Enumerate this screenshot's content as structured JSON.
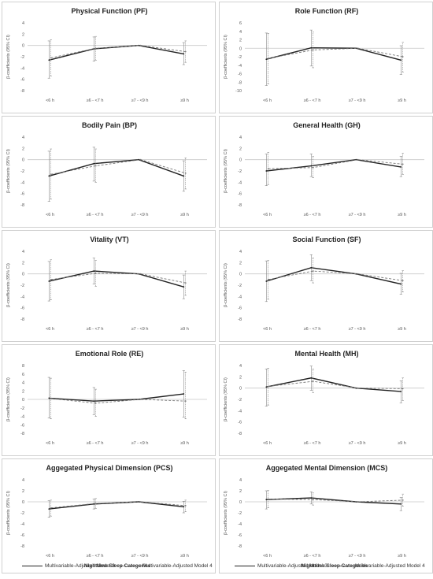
{
  "legend": {
    "model3": "Multivariable-Adjusted Model 3",
    "model4": "Multivariable-Adjusted Model 4"
  },
  "colors": {
    "model3": "#222222",
    "model4": "#777777",
    "gridline": "#c8c8c8",
    "errorbar": "#888888"
  },
  "chart_data": [
    {
      "type": "line",
      "title": "Physical Function (PF)",
      "ylabel": "β-coefficients (95% CI)",
      "xlabel": "",
      "categories": [
        "<6 h",
        "≥6 - <7 h",
        "≥7 - <9 h",
        "≥9 h"
      ],
      "ylim": [
        -8,
        4
      ],
      "ystep": 2,
      "series": [
        {
          "name": "Multivariable-Adjusted Model 3",
          "values": [
            -2.6,
            -0.6,
            0,
            -1.5
          ],
          "lower": [
            -5.8,
            -2.8,
            0,
            -3.4
          ],
          "upper": [
            0.8,
            1.5,
            0,
            0.5
          ]
        },
        {
          "name": "Multivariable-Adjusted Model 4",
          "values": [
            -2.2,
            -0.5,
            0,
            -1.1
          ],
          "lower": [
            -5.4,
            -2.6,
            0,
            -3.0
          ],
          "upper": [
            1.0,
            1.6,
            0,
            0.8
          ]
        }
      ]
    },
    {
      "type": "line",
      "title": "Role Function (RF)",
      "ylabel": "β-coefficients (95% CI)",
      "xlabel": "",
      "categories": [
        "<6 h",
        "≥6 - <7 h",
        "≥7 - <9 h",
        "≥9 h"
      ],
      "ylim": [
        -10,
        6
      ],
      "ystep": 2,
      "series": [
        {
          "name": "Multivariable-Adjusted Model 3",
          "values": [
            -2.6,
            0.1,
            0,
            -2.8
          ],
          "lower": [
            -8.8,
            -4.2,
            0,
            -6.2
          ],
          "upper": [
            3.6,
            4.3,
            0,
            0.6
          ]
        },
        {
          "name": "Multivariable-Adjusted Model 4",
          "values": [
            -2.4,
            -0.4,
            0,
            -2.0
          ],
          "lower": [
            -8.4,
            -4.6,
            0,
            -5.6
          ],
          "upper": [
            3.5,
            3.8,
            0,
            1.4
          ]
        }
      ]
    },
    {
      "type": "line",
      "title": "Bodily Pain (BP)",
      "ylabel": "β-coefficients (95% CI)",
      "xlabel": "",
      "categories": [
        "<6 h",
        "≥6 - <7 h",
        "≥7 - <9 h",
        "≥9 h"
      ],
      "ylim": [
        -8,
        4
      ],
      "ystep": 2,
      "series": [
        {
          "name": "Multivariable-Adjusted Model 3",
          "values": [
            -2.9,
            -0.7,
            0,
            -2.9
          ],
          "lower": [
            -7.4,
            -3.8,
            0,
            -5.6
          ],
          "upper": [
            1.5,
            2.2,
            0,
            -0.2
          ]
        },
        {
          "name": "Multivariable-Adjusted Model 4",
          "values": [
            -2.6,
            -1.1,
            0,
            -2.4
          ],
          "lower": [
            -7.0,
            -4.0,
            0,
            -5.2
          ],
          "upper": [
            1.9,
            1.9,
            0,
            0.3
          ]
        }
      ]
    },
    {
      "type": "line",
      "title": "General Health (GH)",
      "ylabel": "β-coefficients (95% CI)",
      "xlabel": "",
      "categories": [
        "<6 h",
        "≥6 - <7 h",
        "≥7 - <9 h",
        "≥9 h"
      ],
      "ylim": [
        -8,
        4
      ],
      "ystep": 2,
      "series": [
        {
          "name": "Multivariable-Adjusted Model 3",
          "values": [
            -2.0,
            -1.1,
            0,
            -1.3
          ],
          "lower": [
            -4.6,
            -3.0,
            0,
            -3.0
          ],
          "upper": [
            1.0,
            1.0,
            0,
            0.6
          ]
        },
        {
          "name": "Multivariable-Adjusted Model 4",
          "values": [
            -1.6,
            -1.4,
            0,
            -0.8
          ],
          "lower": [
            -4.4,
            -3.2,
            0,
            -2.6
          ],
          "upper": [
            1.3,
            0.6,
            0,
            1.1
          ]
        }
      ]
    },
    {
      "type": "line",
      "title": "Vitality (VT)",
      "ylabel": "β-coefficients (95% CI)",
      "xlabel": "",
      "categories": [
        "<6 h",
        "≥6 - <7 h",
        "≥7 - <9 h",
        "≥9 h"
      ],
      "ylim": [
        -8,
        4
      ],
      "ystep": 2,
      "series": [
        {
          "name": "Multivariable-Adjusted Model 3",
          "values": [
            -1.3,
            0.5,
            0,
            -2.3
          ],
          "lower": [
            -4.8,
            -1.8,
            0,
            -4.4
          ],
          "upper": [
            2.2,
            2.8,
            0,
            -0.2
          ]
        },
        {
          "name": "Multivariable-Adjusted Model 4",
          "values": [
            -1.0,
            0.1,
            0,
            -1.6
          ],
          "lower": [
            -4.6,
            -2.2,
            0,
            -3.8
          ],
          "upper": [
            2.5,
            2.4,
            0,
            0.5
          ]
        }
      ]
    },
    {
      "type": "line",
      "title": "Social Function (SF)",
      "ylabel": "β-coefficients (95% CI)",
      "xlabel": "",
      "categories": [
        "<6 h",
        "≥6 - <7 h",
        "≥7 - <9 h",
        "≥9 h"
      ],
      "ylim": [
        -8,
        4
      ],
      "ystep": 2,
      "series": [
        {
          "name": "Multivariable-Adjusted Model 3",
          "values": [
            -1.3,
            1.1,
            0,
            -1.8
          ],
          "lower": [
            -4.9,
            -1.2,
            0,
            -3.6
          ],
          "upper": [
            2.3,
            3.4,
            0,
            0.1
          ]
        },
        {
          "name": "Multivariable-Adjusted Model 4",
          "values": [
            -1.0,
            0.5,
            0,
            -1.2
          ],
          "lower": [
            -4.5,
            -1.6,
            0,
            -3.2
          ],
          "upper": [
            2.4,
            2.8,
            0,
            0.6
          ]
        }
      ]
    },
    {
      "type": "line",
      "title": "Emotional Role (RE)",
      "ylabel": "β-coefficients (95% CI)",
      "xlabel": "",
      "categories": [
        "<6 h",
        "≥6 - <7 h",
        "≥7 - <9 h",
        "≥9 h"
      ],
      "ylim": [
        -8,
        8
      ],
      "ystep": 2,
      "series": [
        {
          "name": "Multivariable-Adjusted Model 3",
          "values": [
            0.3,
            -0.4,
            0,
            1.3
          ],
          "lower": [
            -4.4,
            -3.6,
            0,
            -4.2
          ],
          "upper": [
            5.2,
            2.8,
            0,
            6.8
          ]
        },
        {
          "name": "Multivariable-Adjusted Model 4",
          "values": [
            0.2,
            -0.9,
            0,
            -0.4
          ],
          "lower": [
            -4.6,
            -4.0,
            0,
            -4.6
          ],
          "upper": [
            5.0,
            2.4,
            0,
            6.4
          ]
        }
      ]
    },
    {
      "type": "line",
      "title": "Mental Health (MH)",
      "ylabel": "β-coefficients (95% CI)",
      "xlabel": "",
      "categories": [
        "<6 h",
        "≥6 - <7 h",
        "≥7 - <9 h",
        "≥9 h"
      ],
      "ylim": [
        -8,
        4
      ],
      "ystep": 2,
      "series": [
        {
          "name": "Multivariable-Adjusted Model 3",
          "values": [
            0.2,
            1.8,
            0,
            -0.6
          ],
          "lower": [
            -3.2,
            -0.4,
            0,
            -2.6
          ],
          "upper": [
            3.4,
            3.9,
            0,
            1.3
          ]
        },
        {
          "name": "Multivariable-Adjusted Model 4",
          "values": [
            0.3,
            1.2,
            0,
            -0.1
          ],
          "lower": [
            -3.0,
            -0.8,
            0,
            -2.2
          ],
          "upper": [
            3.5,
            3.4,
            0,
            1.8
          ]
        }
      ]
    },
    {
      "type": "line",
      "title": "Aggegated Physical Dimension (PCS)",
      "ylabel": "β-coefficients (95% CI)",
      "xlabel": "Nighttime Sleep Categories",
      "categories": [
        "<6 h",
        "≥6 - <7 h",
        "≥7 - <9 h",
        "≥9 h"
      ],
      "ylim": [
        -8,
        4
      ],
      "ystep": 2,
      "series": [
        {
          "name": "Multivariable-Adjusted Model 3",
          "values": [
            -1.3,
            -0.4,
            0,
            -0.9
          ],
          "lower": [
            -2.8,
            -1.3,
            0,
            -2.0
          ],
          "upper": [
            0.2,
            0.5,
            0,
            0.1
          ]
        },
        {
          "name": "Multivariable-Adjusted Model 4",
          "values": [
            -1.1,
            -0.3,
            0,
            -0.7
          ],
          "lower": [
            -2.6,
            -1.2,
            0,
            -1.8
          ],
          "upper": [
            0.3,
            0.6,
            0,
            0.3
          ]
        }
      ]
    },
    {
      "type": "line",
      "title": "Aggegated Mental Dimension (MCS)",
      "ylabel": "β-coefficients (95% CI)",
      "xlabel": "Nighttime Sleep Categories",
      "categories": [
        "<6 h",
        "≥6 - <7 h",
        "≥7 - <9 h",
        "≥9 h"
      ],
      "ylim": [
        -8,
        4
      ],
      "ystep": 2,
      "series": [
        {
          "name": "Multivariable-Adjusted Model 3",
          "values": [
            0.4,
            0.7,
            0,
            -0.4
          ],
          "lower": [
            -1.3,
            -0.4,
            0,
            -1.6
          ],
          "upper": [
            2.0,
            1.8,
            0,
            0.8
          ]
        },
        {
          "name": "Multivariable-Adjusted Model 4",
          "values": [
            0.5,
            0.4,
            0,
            0.3
          ],
          "lower": [
            -1.1,
            -0.6,
            0,
            -0.8
          ],
          "upper": [
            2.1,
            1.6,
            0,
            1.4
          ]
        }
      ]
    }
  ]
}
